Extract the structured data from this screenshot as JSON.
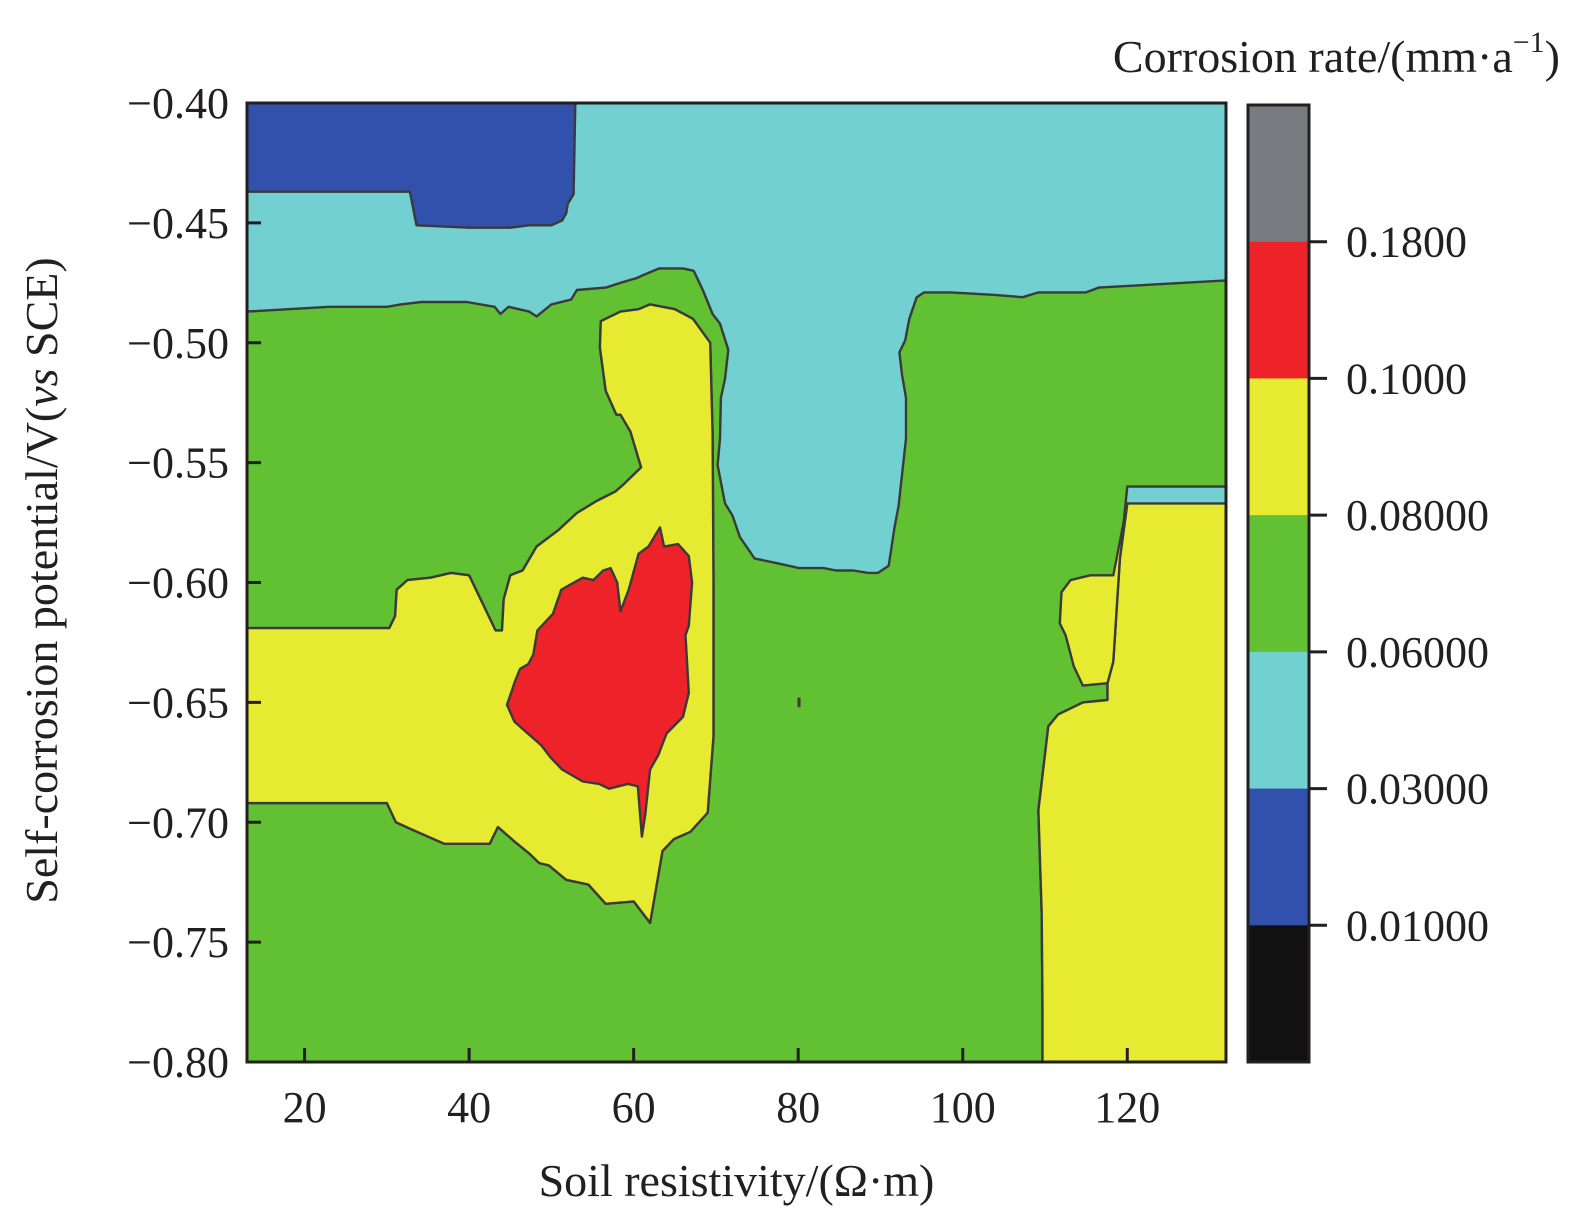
{
  "chart_data": {
    "type": "contour",
    "xlabel": "Soil resistivity/(Ω·m)",
    "ylabel_parts": [
      "Self-corrosion potential/V(",
      "vs",
      " SCE)"
    ],
    "xlim": [
      13,
      132
    ],
    "ylim": [
      -0.8,
      -0.4
    ],
    "x_ticks": [
      20,
      40,
      60,
      80,
      100,
      120
    ],
    "x_tick_labels": [
      "20",
      "40",
      "60",
      "80",
      "100",
      "120"
    ],
    "y_ticks": [
      -0.4,
      -0.45,
      -0.5,
      -0.55,
      -0.6,
      -0.65,
      -0.7,
      -0.75,
      -0.8
    ],
    "y_tick_labels": [
      "−0.40",
      "−0.45",
      "−0.50",
      "−0.55",
      "−0.60",
      "−0.65",
      "−0.70",
      "−0.75",
      "−0.80"
    ],
    "colorbar": {
      "title_main": "Corrosion rate/(mm·a",
      "title_sup": "−1",
      "title_end": ")",
      "levels": [
        "0.1800",
        "0.1000",
        "0.08000",
        "0.06000",
        "0.03000",
        "0.01000"
      ],
      "colors_top_to_bottom": [
        "#787b80",
        "#ee2229",
        "#e6eb32",
        "#62c132",
        "#72d0d0",
        "#3251ac",
        "#111111"
      ]
    },
    "regions": [
      {
        "name": "dark-blue-region",
        "color": "#3251ac",
        "points": [
          [
            13,
            -0.4
          ],
          [
            52.9,
            -0.4
          ],
          [
            52.7,
            -0.438
          ],
          [
            52.0,
            -0.442
          ],
          [
            51.8,
            -0.446
          ],
          [
            51.3,
            -0.449
          ],
          [
            50.0,
            -0.451
          ],
          [
            47.3,
            -0.451
          ],
          [
            45.0,
            -0.452
          ],
          [
            40.0,
            -0.452
          ],
          [
            33.6,
            -0.451
          ],
          [
            32.8,
            -0.437
          ],
          [
            13,
            -0.437
          ]
        ]
      },
      {
        "name": "green-region",
        "color": "#62c132",
        "points": [
          [
            13,
            -0.487
          ],
          [
            23,
            -0.485
          ],
          [
            30,
            -0.485
          ],
          [
            31.7,
            -0.484
          ],
          [
            34.2,
            -0.483
          ],
          [
            39.7,
            -0.483
          ],
          [
            43.1,
            -0.485
          ],
          [
            43.8,
            -0.488
          ],
          [
            44.8,
            -0.485
          ],
          [
            47.3,
            -0.487
          ],
          [
            48.2,
            -0.489
          ],
          [
            50,
            -0.484
          ],
          [
            52.4,
            -0.482
          ],
          [
            53.1,
            -0.478
          ],
          [
            56.6,
            -0.477
          ],
          [
            58.4,
            -0.475
          ],
          [
            60.4,
            -0.473
          ],
          [
            61,
            -0.472
          ],
          [
            63.1,
            -0.469
          ],
          [
            66,
            -0.469
          ],
          [
            67.3,
            -0.47
          ],
          [
            68.4,
            -0.478
          ],
          [
            69.6,
            -0.488
          ],
          [
            70.5,
            -0.492
          ],
          [
            71.5,
            -0.503
          ],
          [
            71.1,
            -0.515
          ],
          [
            70.6,
            -0.523
          ],
          [
            70.5,
            -0.54
          ],
          [
            70.2,
            -0.551
          ],
          [
            71.1,
            -0.567
          ],
          [
            72,
            -0.572
          ],
          [
            72.9,
            -0.581
          ],
          [
            74.7,
            -0.59
          ],
          [
            77.5,
            -0.592
          ],
          [
            80.1,
            -0.594
          ],
          [
            83.1,
            -0.594
          ],
          [
            84.6,
            -0.595
          ],
          [
            86.7,
            -0.595
          ],
          [
            88.5,
            -0.596
          ],
          [
            89.7,
            -0.596
          ],
          [
            91.0,
            -0.593
          ],
          [
            91.7,
            -0.577
          ],
          [
            92.2,
            -0.568
          ],
          [
            93.1,
            -0.54
          ],
          [
            93.1,
            -0.523
          ],
          [
            92.6,
            -0.513
          ],
          [
            92.3,
            -0.504
          ],
          [
            93.0,
            -0.499
          ],
          [
            93.5,
            -0.49
          ],
          [
            94.4,
            -0.481
          ],
          [
            95.3,
            -0.479
          ],
          [
            98.5,
            -0.479
          ],
          [
            103.7,
            -0.48
          ],
          [
            107.3,
            -0.481
          ],
          [
            109.2,
            -0.479
          ],
          [
            112.6,
            -0.479
          ],
          [
            115,
            -0.479
          ],
          [
            116.5,
            -0.477
          ],
          [
            132,
            -0.474
          ],
          [
            132,
            -0.56
          ],
          [
            120,
            -0.56
          ],
          [
            119.1,
            -0.59
          ],
          [
            118.3,
            -0.633
          ],
          [
            117.6,
            -0.642
          ],
          [
            117.6,
            -0.649
          ],
          [
            114.6,
            -0.65
          ],
          [
            111.6,
            -0.655
          ],
          [
            110.4,
            -0.66
          ],
          [
            109.2,
            -0.695
          ],
          [
            109.6,
            -0.738
          ],
          [
            109.7,
            -0.778
          ],
          [
            109.7,
            -0.8
          ],
          [
            13,
            -0.8
          ],
          [
            13,
            -0.692
          ],
          [
            30,
            -0.692
          ],
          [
            31.1,
            -0.7
          ],
          [
            33,
            -0.703
          ],
          [
            37,
            -0.709
          ],
          [
            40,
            -0.709
          ],
          [
            42.5,
            -0.709
          ],
          [
            43.5,
            -0.702
          ],
          [
            45.5,
            -0.708
          ],
          [
            47.3,
            -0.713
          ],
          [
            48.5,
            -0.717
          ],
          [
            49.7,
            -0.718
          ],
          [
            51.8,
            -0.724
          ],
          [
            54.5,
            -0.726
          ],
          [
            56.6,
            -0.734
          ],
          [
            60,
            -0.733
          ],
          [
            62,
            -0.742
          ],
          [
            63.5,
            -0.712
          ],
          [
            64.9,
            -0.707
          ],
          [
            66.9,
            -0.704
          ],
          [
            69.0,
            -0.696
          ],
          [
            69.7,
            -0.664
          ],
          [
            69.7,
            -0.6
          ],
          [
            69.6,
            -0.538
          ],
          [
            69.3,
            -0.5
          ],
          [
            67.2,
            -0.49
          ],
          [
            65.0,
            -0.486
          ],
          [
            62.0,
            -0.484
          ],
          [
            60.6,
            -0.486
          ],
          [
            58.4,
            -0.487
          ],
          [
            56.0,
            -0.491
          ],
          [
            55.9,
            -0.502
          ],
          [
            56.6,
            -0.52
          ],
          [
            57.9,
            -0.53
          ],
          [
            58.4,
            -0.53
          ],
          [
            59.6,
            -0.537
          ],
          [
            60.9,
            -0.552
          ],
          [
            58.8,
            -0.559
          ],
          [
            57.8,
            -0.562
          ],
          [
            55.5,
            -0.566
          ],
          [
            53.1,
            -0.571
          ],
          [
            50.9,
            -0.578
          ],
          [
            48.2,
            -0.585
          ],
          [
            46.5,
            -0.595
          ],
          [
            45,
            -0.597
          ],
          [
            44.2,
            -0.607
          ],
          [
            44,
            -0.62
          ],
          [
            43.2,
            -0.62
          ],
          [
            40,
            -0.597
          ],
          [
            37.8,
            -0.596
          ],
          [
            35.3,
            -0.598
          ],
          [
            32.5,
            -0.599
          ],
          [
            31.2,
            -0.603
          ],
          [
            31.0,
            -0.614
          ],
          [
            30.3,
            -0.619
          ],
          [
            13,
            -0.619
          ]
        ]
      },
      {
        "name": "yellow-left-region",
        "color": "#e6eb32",
        "points": [
          [
            13,
            -0.619
          ],
          [
            30.3,
            -0.619
          ],
          [
            31.0,
            -0.614
          ],
          [
            31.2,
            -0.603
          ],
          [
            32.5,
            -0.599
          ],
          [
            35.3,
            -0.598
          ],
          [
            37.8,
            -0.596
          ],
          [
            40,
            -0.597
          ],
          [
            43.2,
            -0.62
          ],
          [
            44,
            -0.62
          ],
          [
            44.2,
            -0.607
          ],
          [
            45,
            -0.597
          ],
          [
            46.5,
            -0.595
          ],
          [
            48.2,
            -0.585
          ],
          [
            50.9,
            -0.578
          ],
          [
            53.1,
            -0.571
          ],
          [
            55.5,
            -0.566
          ],
          [
            57.8,
            -0.562
          ],
          [
            58.8,
            -0.559
          ],
          [
            60.9,
            -0.552
          ],
          [
            59.6,
            -0.537
          ],
          [
            58.4,
            -0.53
          ],
          [
            57.9,
            -0.53
          ],
          [
            56.6,
            -0.52
          ],
          [
            55.9,
            -0.502
          ],
          [
            56.0,
            -0.491
          ],
          [
            58.4,
            -0.487
          ],
          [
            60.6,
            -0.486
          ],
          [
            62.0,
            -0.484
          ],
          [
            65.0,
            -0.486
          ],
          [
            67.2,
            -0.49
          ],
          [
            69.3,
            -0.5
          ],
          [
            69.6,
            -0.538
          ],
          [
            69.7,
            -0.6
          ],
          [
            69.7,
            -0.664
          ],
          [
            69.0,
            -0.696
          ],
          [
            66.9,
            -0.704
          ],
          [
            64.9,
            -0.707
          ],
          [
            63.5,
            -0.712
          ],
          [
            62,
            -0.742
          ],
          [
            60,
            -0.733
          ],
          [
            56.6,
            -0.734
          ],
          [
            54.5,
            -0.726
          ],
          [
            51.8,
            -0.724
          ],
          [
            49.7,
            -0.718
          ],
          [
            48.5,
            -0.717
          ],
          [
            47.3,
            -0.713
          ],
          [
            45.5,
            -0.708
          ],
          [
            43.5,
            -0.702
          ],
          [
            42.5,
            -0.709
          ],
          [
            40,
            -0.709
          ],
          [
            37,
            -0.709
          ],
          [
            33,
            -0.703
          ],
          [
            31.1,
            -0.7
          ],
          [
            30,
            -0.692
          ],
          [
            13,
            -0.692
          ]
        ]
      },
      {
        "name": "yellow-right-region",
        "color": "#e6eb32",
        "points": [
          [
            132,
            -0.567
          ],
          [
            120,
            -0.567
          ],
          [
            119.1,
            -0.59
          ],
          [
            118.3,
            -0.633
          ],
          [
            117.6,
            -0.642
          ],
          [
            117.6,
            -0.649
          ],
          [
            114.6,
            -0.65
          ],
          [
            111.6,
            -0.655
          ],
          [
            110.4,
            -0.66
          ],
          [
            109.2,
            -0.695
          ],
          [
            109.6,
            -0.738
          ],
          [
            109.7,
            -0.778
          ],
          [
            109.7,
            -0.8
          ],
          [
            132,
            -0.8
          ]
        ]
      },
      {
        "name": "yellow-right-inner-bump",
        "color": "#e6eb32",
        "points": [
          [
            120,
            -0.567
          ],
          [
            118.3,
            -0.597
          ],
          [
            115.5,
            -0.597
          ],
          [
            113.1,
            -0.599
          ],
          [
            112.0,
            -0.604
          ],
          [
            111.8,
            -0.617
          ],
          [
            112.5,
            -0.622
          ],
          [
            113.5,
            -0.635
          ],
          [
            114.6,
            -0.643
          ],
          [
            117.6,
            -0.642
          ],
          [
            118.3,
            -0.633
          ],
          [
            119.1,
            -0.59
          ]
        ]
      },
      {
        "name": "red-region",
        "color": "#ee2229",
        "points": [
          [
            44.6,
            -0.651
          ],
          [
            45.6,
            -0.641
          ],
          [
            46.2,
            -0.636
          ],
          [
            47.2,
            -0.634
          ],
          [
            47.8,
            -0.63
          ],
          [
            48.3,
            -0.62
          ],
          [
            50.2,
            -0.613
          ],
          [
            51.2,
            -0.603
          ],
          [
            53.8,
            -0.598
          ],
          [
            55.1,
            -0.599
          ],
          [
            56.3,
            -0.595
          ],
          [
            57.2,
            -0.594
          ],
          [
            58.0,
            -0.6
          ],
          [
            58.4,
            -0.612
          ],
          [
            59.4,
            -0.603
          ],
          [
            60.6,
            -0.588
          ],
          [
            61.8,
            -0.585
          ],
          [
            63.2,
            -0.577
          ],
          [
            63.7,
            -0.585
          ],
          [
            65.4,
            -0.584
          ],
          [
            66.7,
            -0.589
          ],
          [
            67.1,
            -0.6
          ],
          [
            66.7,
            -0.618
          ],
          [
            66.3,
            -0.622
          ],
          [
            66.7,
            -0.646
          ],
          [
            66.0,
            -0.656
          ],
          [
            64.0,
            -0.663
          ],
          [
            63.0,
            -0.672
          ],
          [
            62.0,
            -0.678
          ],
          [
            61.4,
            -0.697
          ],
          [
            61.0,
            -0.706
          ],
          [
            60.5,
            -0.685
          ],
          [
            59.3,
            -0.684
          ],
          [
            57.0,
            -0.686
          ],
          [
            55.8,
            -0.684
          ],
          [
            53.8,
            -0.683
          ],
          [
            51.3,
            -0.678
          ],
          [
            49.9,
            -0.673
          ],
          [
            48.8,
            -0.668
          ],
          [
            46.8,
            -0.662
          ],
          [
            45.5,
            -0.658
          ]
        ]
      }
    ]
  }
}
